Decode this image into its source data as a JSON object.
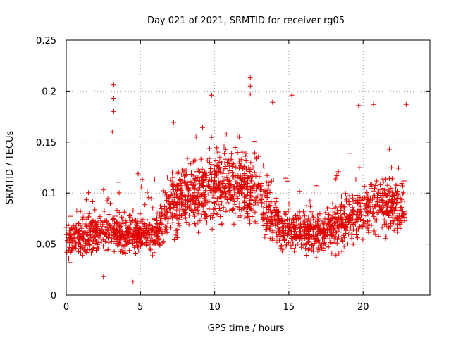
{
  "chart_data": {
    "type": "scatter",
    "title": "Day 021 of 2021, SRMTID for receiver rg05",
    "xlabel": "GPS time / hours",
    "ylabel": "SRMTID / TECUs",
    "xlim": [
      0,
      24.5
    ],
    "ylim": [
      0,
      0.25
    ],
    "xticks": [
      0,
      5,
      10,
      15,
      20
    ],
    "xtick_labels": [
      "0",
      "5",
      "10",
      "15",
      "20"
    ],
    "yticks": [
      0,
      0.05,
      0.1,
      0.15,
      0.2,
      0.25
    ],
    "ytick_labels": [
      "0",
      "0.05",
      "0.1",
      "0.15",
      "0.2",
      "0.25"
    ],
    "grid": true,
    "marker": "+",
    "colors": {
      "points": "#e00000",
      "grid": "#a0a0a0",
      "axis": "#000000"
    },
    "point_count": 2200,
    "approx_level_profile": [
      {
        "hour": 0,
        "median": 0.055
      },
      {
        "hour": 2,
        "median": 0.06
      },
      {
        "hour": 4,
        "median": 0.06
      },
      {
        "hour": 6,
        "median": 0.06
      },
      {
        "hour": 7,
        "median": 0.09
      },
      {
        "hour": 9,
        "median": 0.1
      },
      {
        "hour": 11,
        "median": 0.11
      },
      {
        "hour": 13,
        "median": 0.1
      },
      {
        "hour": 14.5,
        "median": 0.065
      },
      {
        "hour": 17,
        "median": 0.06
      },
      {
        "hour": 19,
        "median": 0.075
      },
      {
        "hour": 21,
        "median": 0.09
      },
      {
        "hour": 22.8,
        "median": 0.08
      }
    ],
    "notable_points": [
      {
        "x": 3.2,
        "y": 0.206
      },
      {
        "x": 3.2,
        "y": 0.193
      },
      {
        "x": 3.2,
        "y": 0.18
      },
      {
        "x": 3.1,
        "y": 0.16
      },
      {
        "x": 9.8,
        "y": 0.196
      },
      {
        "x": 12.4,
        "y": 0.213
      },
      {
        "x": 12.4,
        "y": 0.205
      },
      {
        "x": 12.4,
        "y": 0.197
      },
      {
        "x": 13.9,
        "y": 0.189
      },
      {
        "x": 15.2,
        "y": 0.196
      },
      {
        "x": 19.7,
        "y": 0.186
      },
      {
        "x": 20.7,
        "y": 0.187
      },
      {
        "x": 22.9,
        "y": 0.187
      },
      {
        "x": 4.5,
        "y": 0.013
      },
      {
        "x": 2.5,
        "y": 0.018
      }
    ]
  }
}
